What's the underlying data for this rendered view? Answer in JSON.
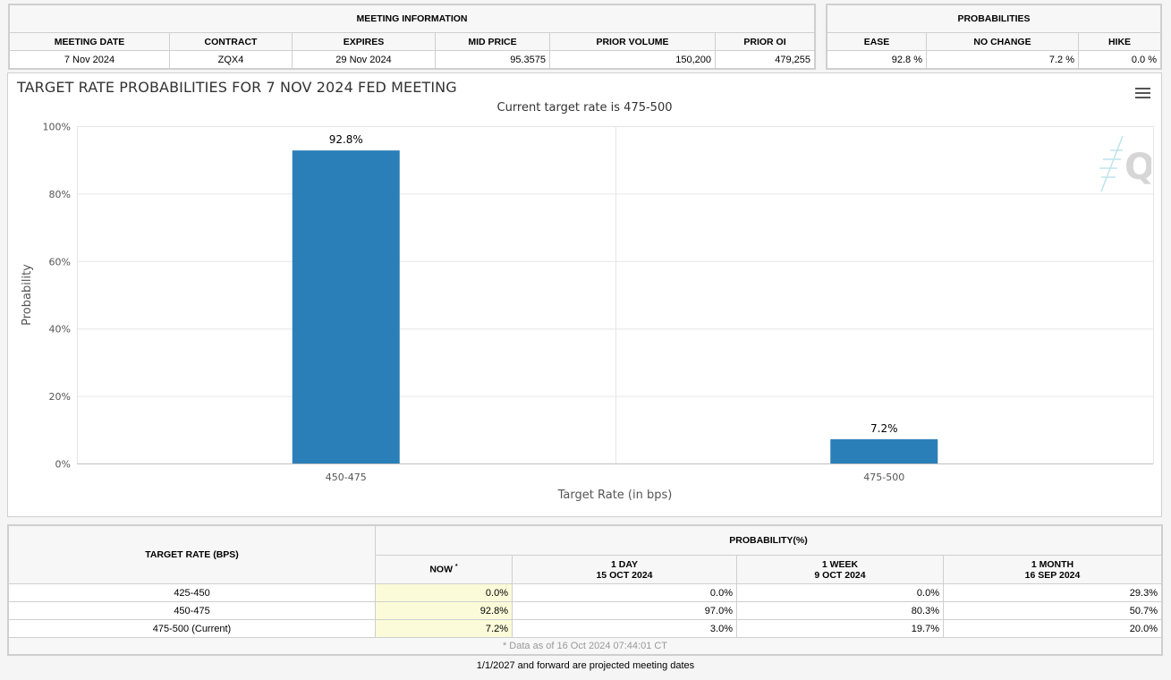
{
  "meeting_info": {
    "caption": "MEETING INFORMATION",
    "headers": [
      "MEETING DATE",
      "CONTRACT",
      "EXPIRES",
      "MID PRICE",
      "PRIOR VOLUME",
      "PRIOR OI"
    ],
    "values": [
      "7 Nov 2024",
      "ZQX4",
      "29 Nov 2024",
      "95.3575",
      "150,200",
      "479,255"
    ]
  },
  "probabilities": {
    "caption": "PROBABILITIES",
    "headers": [
      "EASE",
      "NO CHANGE",
      "HIKE"
    ],
    "values": [
      "92.8 %",
      "7.2 %",
      "0.0 %"
    ]
  },
  "chart_data": {
    "type": "bar",
    "title": "TARGET RATE PROBABILITIES FOR 7 NOV 2024 FED MEETING",
    "subtitle": "Current target rate is 475-500",
    "xlabel": "Target Rate (in bps)",
    "ylabel": "Probability",
    "categories": [
      "450-475",
      "475-500"
    ],
    "values": [
      92.8,
      7.2
    ],
    "data_labels": [
      "92.8%",
      "7.2%"
    ],
    "ylim": [
      0,
      100
    ],
    "yticks": [
      0,
      20,
      40,
      60,
      80,
      100
    ],
    "ytick_labels": [
      "0%",
      "20%",
      "40%",
      "60%",
      "80%",
      "100%"
    ],
    "grid": true,
    "bar_color": "#2b7fb8"
  },
  "prob_table": {
    "rate_header": "TARGET RATE (BPS)",
    "prob_header": "PROBABILITY(%)",
    "now_label": "NOW",
    "now_mark": "*",
    "periods": [
      {
        "label": "1 DAY",
        "date": "15 OCT 2024"
      },
      {
        "label": "1 WEEK",
        "date": "9 OCT 2024"
      },
      {
        "label": "1 MONTH",
        "date": "16 SEP 2024"
      }
    ],
    "rows": [
      {
        "rate": "425-450",
        "now": "0.0%",
        "day": "0.0%",
        "week": "0.0%",
        "month": "29.3%"
      },
      {
        "rate": "450-475",
        "now": "92.8%",
        "day": "97.0%",
        "week": "80.3%",
        "month": "50.7%"
      },
      {
        "rate": "475-500 (Current)",
        "now": "7.2%",
        "day": "3.0%",
        "week": "19.7%",
        "month": "20.0%"
      }
    ],
    "data_note": "* Data as of 16 Oct 2024 07:44:01 CT"
  },
  "footer_note": "1/1/2027 and forward are projected meeting dates"
}
